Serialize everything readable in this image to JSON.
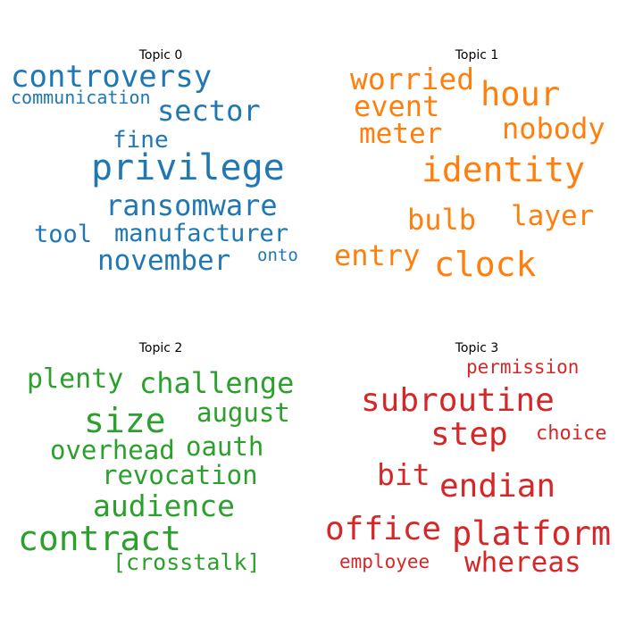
{
  "chart_data": [
    {
      "type": "wordcloud",
      "title": "Topic 0",
      "color": "#1f77b4",
      "words": [
        {
          "text": "controversy",
          "weight": 34
        },
        {
          "text": "communication",
          "weight": 20
        },
        {
          "text": "sector",
          "weight": 32
        },
        {
          "text": "fine",
          "weight": 26
        },
        {
          "text": "privilege",
          "weight": 40
        },
        {
          "text": "ransomware",
          "weight": 32
        },
        {
          "text": "tool",
          "weight": 27
        },
        {
          "text": "manufacturer",
          "weight": 27
        },
        {
          "text": "november",
          "weight": 31
        },
        {
          "text": "onto",
          "weight": 19
        }
      ]
    },
    {
      "type": "wordcloud",
      "title": "Topic 1",
      "color": "#ff7f0e",
      "words": [
        {
          "text": "worried",
          "weight": 33
        },
        {
          "text": "hour",
          "weight": 37
        },
        {
          "text": "event",
          "weight": 32
        },
        {
          "text": "meter",
          "weight": 31
        },
        {
          "text": "nobody",
          "weight": 32
        },
        {
          "text": "identity",
          "weight": 38
        },
        {
          "text": "bulb",
          "weight": 32
        },
        {
          "text": "layer",
          "weight": 31
        },
        {
          "text": "entry",
          "weight": 32
        },
        {
          "text": "clock",
          "weight": 38
        }
      ]
    },
    {
      "type": "wordcloud",
      "title": "Topic 2",
      "color": "#2ca02c",
      "words": [
        {
          "text": "plenty",
          "weight": 30
        },
        {
          "text": "challenge",
          "weight": 32
        },
        {
          "text": "size",
          "weight": 38
        },
        {
          "text": "august",
          "weight": 29
        },
        {
          "text": "overhead",
          "weight": 29
        },
        {
          "text": "oauth",
          "weight": 29
        },
        {
          "text": "revocation",
          "weight": 29
        },
        {
          "text": "audience",
          "weight": 33
        },
        {
          "text": "contract",
          "weight": 38
        },
        {
          "text": "[crosstalk]",
          "weight": 25
        }
      ]
    },
    {
      "type": "wordcloud",
      "title": "Topic 3",
      "color": "#d62728",
      "words": [
        {
          "text": "permission",
          "weight": 21
        },
        {
          "text": "subroutine",
          "weight": 36
        },
        {
          "text": "step",
          "weight": 36
        },
        {
          "text": "choice",
          "weight": 22
        },
        {
          "text": "bit",
          "weight": 33
        },
        {
          "text": "endian",
          "weight": 36
        },
        {
          "text": "office",
          "weight": 36
        },
        {
          "text": "platform",
          "weight": 37
        },
        {
          "text": "employee",
          "weight": 21
        },
        {
          "text": "whereas",
          "weight": 31
        }
      ]
    }
  ]
}
